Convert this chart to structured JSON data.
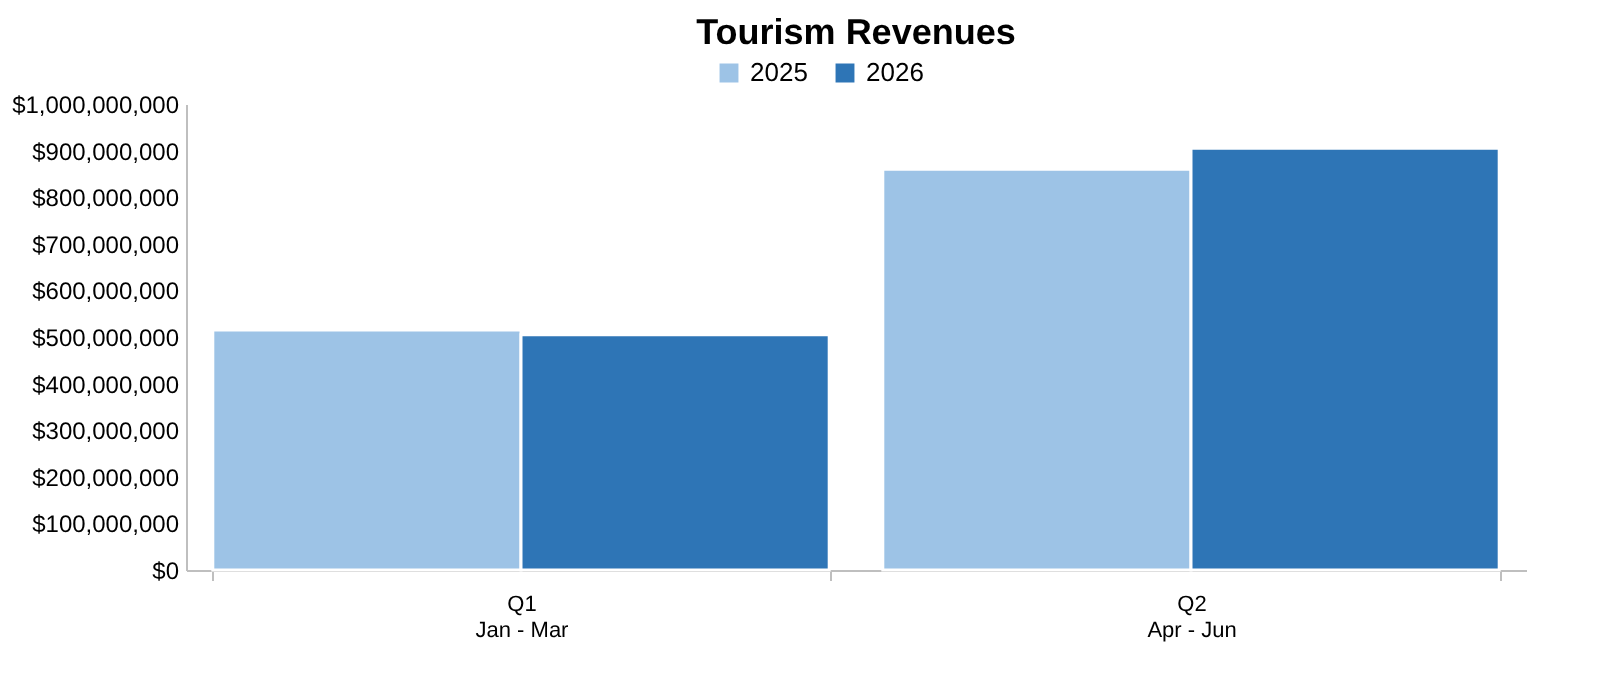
{
  "chart_data": {
    "type": "bar",
    "title": "Tourism Revenues",
    "categories": [
      "Q1\nJan - Mar",
      "Q2\nApr - Jun"
    ],
    "series": [
      {
        "name": "2025",
        "color": "#9dc3e6",
        "values": [
          515000000,
          860000000
        ]
      },
      {
        "name": "2026",
        "color": "#2e75b6",
        "values": [
          505000000,
          905000000
        ]
      }
    ],
    "ylim": [
      0,
      1000000000
    ],
    "yticks": [
      {
        "value": 0,
        "label": "$0"
      },
      {
        "value": 100000000,
        "label": "$100,000,000"
      },
      {
        "value": 200000000,
        "label": "$200,000,000"
      },
      {
        "value": 300000000,
        "label": "$300,000,000"
      },
      {
        "value": 400000000,
        "label": "$400,000,000"
      },
      {
        "value": 500000000,
        "label": "$500,000,000"
      },
      {
        "value": 600000000,
        "label": "$600,000,000"
      },
      {
        "value": 700000000,
        "label": "$700,000,000"
      },
      {
        "value": 800000000,
        "label": "$800,000,000"
      },
      {
        "value": 900000000,
        "label": "$900,000,000"
      },
      {
        "value": 1000000000,
        "label": "$1,000,000,000"
      }
    ],
    "grid": false,
    "legend": "top"
  }
}
